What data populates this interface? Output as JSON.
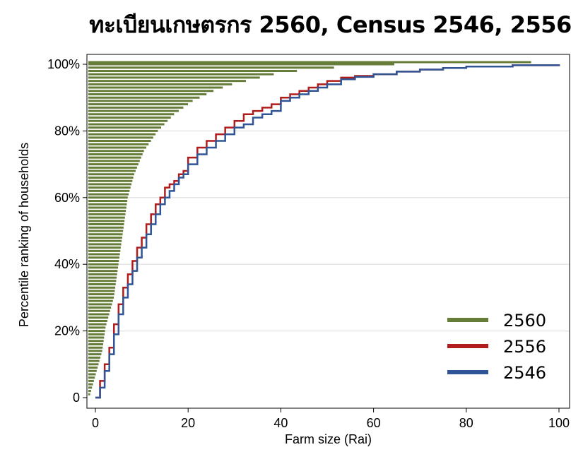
{
  "chart_data": {
    "type": "line",
    "title": "ทะเบียนเกษตรกร 2560, Census 2546, 2556",
    "xlabel": "Farm size (Rai)",
    "ylabel": "Percentile ranking of households",
    "xlim": [
      0,
      100
    ],
    "ylim": [
      0,
      100
    ],
    "xticks": [
      0,
      20,
      40,
      60,
      80,
      100
    ],
    "yticks": [
      0,
      20,
      40,
      60,
      80,
      100
    ],
    "xtick_labels": [
      "0",
      "20",
      "40",
      "60",
      "80",
      "100"
    ],
    "ytick_labels": [
      "0",
      "20%",
      "40%",
      "60%",
      "80%",
      "100%"
    ],
    "grid": "horizontal",
    "legend_position": "bottom-right",
    "series": [
      {
        "name": "2560",
        "style": "horizontal-bars",
        "color": "#667d3a",
        "percentiles": [
          1,
          2,
          3,
          4,
          5,
          6,
          7,
          8,
          9,
          10,
          11,
          12,
          13,
          14,
          15,
          16,
          17,
          18,
          19,
          20,
          21,
          22,
          23,
          24,
          25,
          26,
          27,
          28,
          29,
          30,
          31,
          32,
          33,
          34,
          35,
          36,
          37,
          38,
          39,
          40,
          41,
          42,
          43,
          44,
          45,
          46,
          47,
          48,
          49,
          50,
          51,
          52,
          53,
          54,
          55,
          56,
          57,
          58,
          59,
          60,
          61,
          62,
          63,
          64,
          65,
          66,
          67,
          68,
          69,
          70,
          71,
          72,
          73,
          74,
          75,
          76,
          77,
          78,
          79,
          80,
          81,
          82,
          83,
          84,
          85,
          86,
          87,
          88,
          89,
          90,
          91,
          92,
          93,
          94,
          95,
          96,
          97,
          98,
          99,
          100
        ],
        "values": [
          0.4,
          0.6,
          0.8,
          1.0,
          1.2,
          1.4,
          1.6,
          1.8,
          2.0,
          2.2,
          2.4,
          2.6,
          2.8,
          3.0,
          3.1,
          3.2,
          3.3,
          3.4,
          3.5,
          3.6,
          3.7,
          3.9,
          4.1,
          4.3,
          4.5,
          4.7,
          4.9,
          5.1,
          5.3,
          5.5,
          5.6,
          5.7,
          5.8,
          5.9,
          6.0,
          6.1,
          6.2,
          6.3,
          6.4,
          6.5,
          6.6,
          6.7,
          6.8,
          6.9,
          7.0,
          7.1,
          7.2,
          7.3,
          7.4,
          7.5,
          7.6,
          7.7,
          7.8,
          7.9,
          8.0,
          8.1,
          8.2,
          8.3,
          8.4,
          8.5,
          8.7,
          8.9,
          9.1,
          9.3,
          9.5,
          9.7,
          9.9,
          10.2,
          10.5,
          10.8,
          11.1,
          11.4,
          11.7,
          12.0,
          12.5,
          13.0,
          13.5,
          14.0,
          14.5,
          15.0,
          15.7,
          16.4,
          17.1,
          17.8,
          18.5,
          19.5,
          20.5,
          21.5,
          22.5,
          24.0,
          25.5,
          27.0,
          29.0,
          31.0,
          34.0,
          37.0,
          40.0,
          45.0,
          53.0,
          66.0
        ]
      },
      {
        "name": "2556",
        "style": "step-line",
        "color": "#b01c1c",
        "x": [
          0,
          1,
          2,
          3,
          4,
          5,
          6,
          7,
          8,
          9,
          10,
          11,
          12,
          13,
          14,
          15,
          16,
          17,
          18,
          19,
          20,
          22,
          24,
          26,
          28,
          30,
          32,
          34,
          36,
          38,
          40,
          42,
          44,
          46,
          48,
          50,
          53,
          56,
          60,
          65,
          70,
          75,
          80,
          90,
          100
        ],
        "y": [
          0,
          5,
          10,
          15,
          22,
          28,
          33,
          37,
          41,
          45,
          48,
          52,
          55,
          58,
          60,
          63,
          64,
          65,
          67,
          68,
          72,
          75,
          77,
          79,
          81,
          83,
          85,
          86,
          87,
          88,
          90,
          91,
          92,
          93,
          94,
          95,
          96,
          96.5,
          97,
          97.8,
          98.4,
          98.9,
          99.3,
          99.7,
          100
        ]
      },
      {
        "name": "2546",
        "style": "step-line",
        "color": "#2f5597",
        "x": [
          0,
          1,
          2,
          3,
          4,
          5,
          6,
          7,
          8,
          9,
          10,
          11,
          12,
          13,
          14,
          15,
          16,
          17,
          18,
          19,
          20,
          22,
          24,
          26,
          28,
          30,
          32,
          34,
          36,
          38,
          40,
          42,
          44,
          46,
          48,
          50,
          53,
          56,
          60,
          65,
          70,
          75,
          80,
          90,
          100
        ],
        "y": [
          0,
          3,
          8,
          13,
          19,
          25,
          30,
          34,
          38,
          42,
          45,
          49,
          52,
          55,
          58,
          60,
          62,
          64,
          66,
          67,
          70,
          73,
          75,
          77,
          79,
          81,
          82,
          84,
          85,
          86,
          89,
          90,
          91,
          92,
          93,
          94,
          95.5,
          96.2,
          97,
          97.8,
          98.4,
          98.9,
          99.3,
          99.7,
          100
        ]
      }
    ]
  }
}
